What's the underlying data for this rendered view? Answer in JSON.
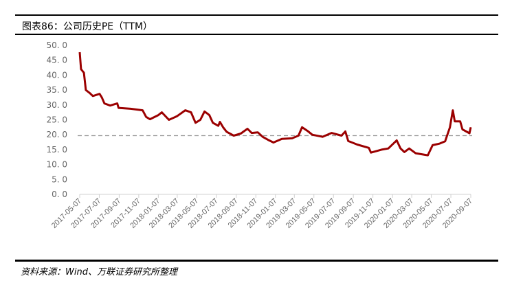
{
  "title": "图表86：公司历史PE（TTM）",
  "source": "资料来源：Wind、万联证券研究所整理",
  "chart_data": {
    "type": "line",
    "title": "图表86：公司历史PE（TTM）",
    "xlabel": "",
    "ylabel": "",
    "ylim": [
      0,
      50
    ],
    "yticks": [
      "0.0",
      "5.0",
      "10.0",
      "15.0",
      "20.0",
      "25.0",
      "30.0",
      "35.0",
      "40.0",
      "45.0",
      "50.0"
    ],
    "xticks": [
      "2017-05-07",
      "2017-07-07",
      "2017-09-07",
      "2017-11-07",
      "2018-01-07",
      "2018-03-07",
      "2018-05-07",
      "2018-07-07",
      "2018-09-07",
      "2018-11-07",
      "2019-01-07",
      "2019-03-07",
      "2019-05-07",
      "2019-07-07",
      "2019-09-07",
      "2019-11-07",
      "2020-01-07",
      "2020-03-07",
      "2020-05-07",
      "2020-07-07",
      "2020-09-07"
    ],
    "grid": false,
    "line_color": "#9B0000",
    "reference_line": {
      "value": 19.7,
      "style": "dashed",
      "color": "#999999"
    },
    "series": [
      {
        "points": [
          [
            "2017-05-07",
            47.7
          ],
          [
            "2017-05-11",
            42
          ],
          [
            "2017-05-20",
            40.8
          ],
          [
            "2017-05-26",
            35
          ],
          [
            "2017-06-07",
            34
          ],
          [
            "2017-06-17",
            33
          ],
          [
            "2017-07-08",
            33.7
          ],
          [
            "2017-07-15",
            32.5
          ],
          [
            "2017-07-23",
            30.5
          ],
          [
            "2017-08-10",
            29.8
          ],
          [
            "2017-09-01",
            30.5
          ],
          [
            "2017-09-05",
            29
          ],
          [
            "2017-10-13",
            28.7
          ],
          [
            "2017-11-19",
            28.2
          ],
          [
            "2017-11-30",
            26
          ],
          [
            "2017-12-12",
            25.2
          ],
          [
            "2018-01-07",
            26.6
          ],
          [
            "2018-01-18",
            27.5
          ],
          [
            "2018-02-09",
            25
          ],
          [
            "2018-03-06",
            26.2
          ],
          [
            "2018-04-01",
            28.2
          ],
          [
            "2018-04-19",
            27.5
          ],
          [
            "2018-05-03",
            24
          ],
          [
            "2018-05-18",
            25
          ],
          [
            "2018-05-31",
            27.8
          ],
          [
            "2018-06-15",
            26.6
          ],
          [
            "2018-06-26",
            24
          ],
          [
            "2018-07-13",
            23
          ],
          [
            "2018-07-18",
            24.3
          ],
          [
            "2018-07-28",
            22.5
          ],
          [
            "2018-08-08",
            21
          ],
          [
            "2018-08-30",
            19.7
          ],
          [
            "2018-09-21",
            20.4
          ],
          [
            "2018-10-12",
            22
          ],
          [
            "2018-10-25",
            20.6
          ],
          [
            "2018-11-13",
            20.8
          ],
          [
            "2018-11-28",
            19.3
          ],
          [
            "2018-12-15",
            18.3
          ],
          [
            "2019-01-01",
            17.4
          ],
          [
            "2019-01-27",
            18.6
          ],
          [
            "2019-02-28",
            18.8
          ],
          [
            "2019-03-20",
            19.7
          ],
          [
            "2019-03-31",
            22.5
          ],
          [
            "2019-04-17",
            21.3
          ],
          [
            "2019-05-02",
            20
          ],
          [
            "2019-06-03",
            19.3
          ],
          [
            "2019-07-01",
            20.6
          ],
          [
            "2019-08-01",
            19.7
          ],
          [
            "2019-08-13",
            21.1
          ],
          [
            "2019-08-22",
            17.9
          ],
          [
            "2019-09-19",
            16.7
          ],
          [
            "2019-10-25",
            15.6
          ],
          [
            "2019-11-01",
            14
          ],
          [
            "2019-12-04",
            15
          ],
          [
            "2019-12-25",
            15.4
          ],
          [
            "2020-01-20",
            18.1
          ],
          [
            "2020-02-01",
            15.4
          ],
          [
            "2020-02-13",
            14.2
          ],
          [
            "2020-02-28",
            15.4
          ],
          [
            "2020-03-19",
            13.8
          ],
          [
            "2020-04-26",
            13.1
          ],
          [
            "2020-05-11",
            16.5
          ],
          [
            "2020-06-01",
            17
          ],
          [
            "2020-06-19",
            17.8
          ],
          [
            "2020-06-23",
            19
          ],
          [
            "2020-07-04",
            22.5
          ],
          [
            "2020-07-13",
            28.2
          ],
          [
            "2020-07-19",
            24.5
          ],
          [
            "2020-08-05",
            24.5
          ],
          [
            "2020-08-12",
            21.8
          ],
          [
            "2020-09-03",
            20.5
          ],
          [
            "2020-09-07",
            22.5
          ]
        ]
      }
    ]
  }
}
